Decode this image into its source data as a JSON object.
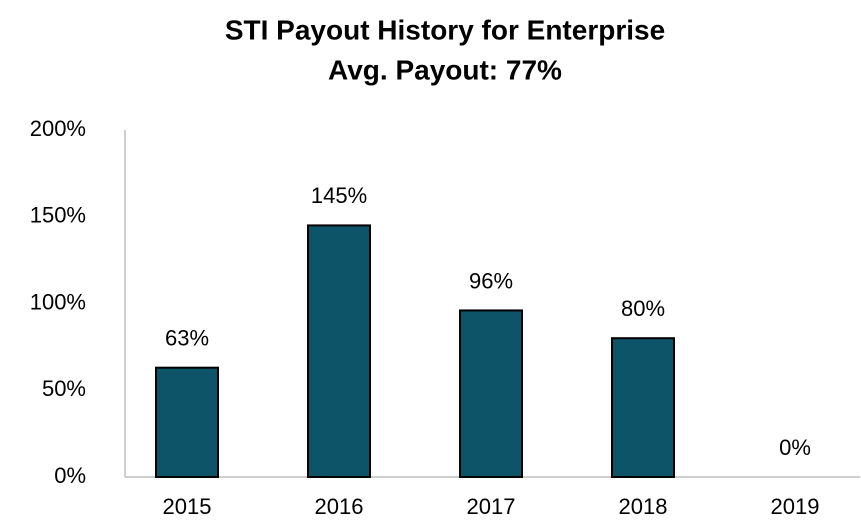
{
  "chart_data": {
    "type": "bar",
    "title": "STI Payout History for Enterprise",
    "subtitle": "Avg. Payout: 77%",
    "categories": [
      "2015",
      "2016",
      "2017",
      "2018",
      "2019"
    ],
    "values": [
      63,
      145,
      96,
      80,
      0
    ],
    "value_labels": [
      "63%",
      "145%",
      "96%",
      "80%",
      "0%"
    ],
    "color": "#0d5469",
    "ylim": [
      0,
      200
    ],
    "yticks": [
      {
        "value": 0,
        "label": "0%"
      },
      {
        "value": 50,
        "label": "50%"
      },
      {
        "value": 100,
        "label": "100%"
      },
      {
        "value": 150,
        "label": "150%"
      },
      {
        "value": 200,
        "label": "200%"
      }
    ],
    "grid": false
  }
}
